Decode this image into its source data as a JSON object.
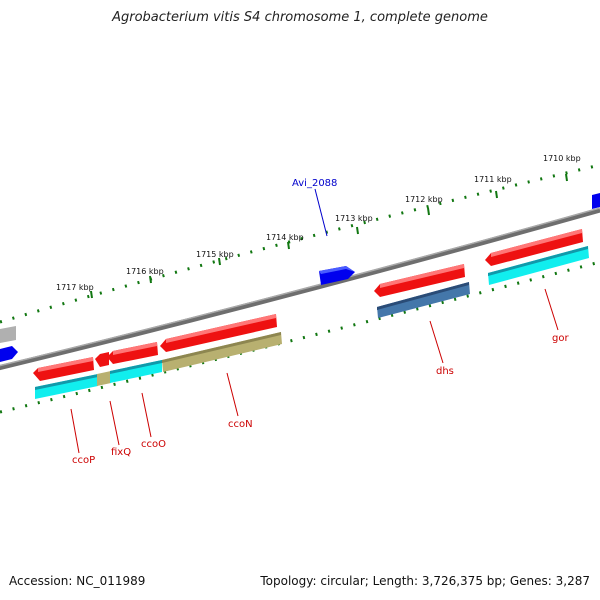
{
  "title": "Agrobacterium vitis S4 chromosome 1, complete genome",
  "footer": {
    "accession": "Accession: NC_011989",
    "summary": "Topology: circular; Length: 3,726,375 bp; Genes: 3,287"
  },
  "kbp_labels": [
    "1717 kbp",
    "1716 kbp",
    "1715 kbp",
    "1714 kbp",
    "1713 kbp",
    "1712 kbp",
    "1711 kbp",
    "1710 kbp"
  ],
  "gene_labels": {
    "red": [
      "ccoP",
      "fixQ",
      "ccoO",
      "ccoN",
      "dhs",
      "gor"
    ],
    "blue": [
      "Avi_2088"
    ]
  },
  "colors": {
    "gene_red": "#ee1111",
    "cds_cyan": "#11eeee",
    "cds_olive": "#b8b070",
    "cds_steelblue": "#4477aa",
    "gene_blue": "#0000ee",
    "backbone": "#808080",
    "tick": "#117711",
    "label_red": "#cc0000",
    "label_blue": "#0000cc"
  }
}
